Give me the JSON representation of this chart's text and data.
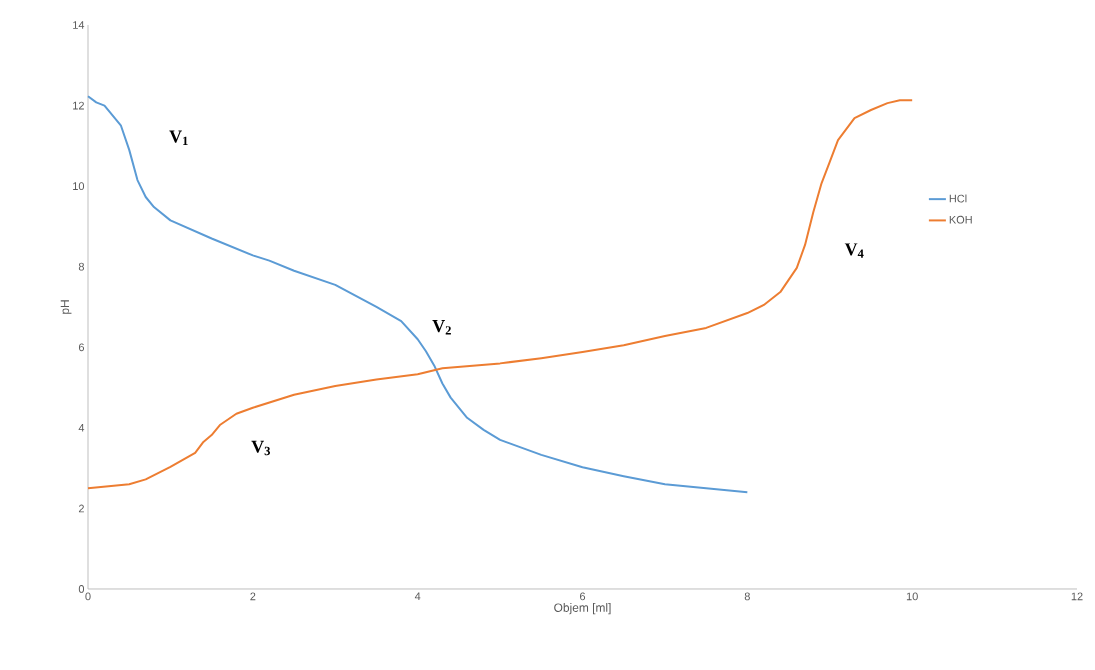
{
  "chart_data": {
    "type": "line",
    "xlabel": "Objem [ml]",
    "ylabel": "pH",
    "xlim": [
      0,
      12
    ],
    "ylim": [
      0,
      14
    ],
    "xticks": [
      0,
      2,
      4,
      6,
      8,
      10,
      12
    ],
    "yticks": [
      0,
      2,
      4,
      6,
      8,
      10,
      12,
      14
    ],
    "grid": false,
    "legend": "right",
    "series": [
      {
        "name": "HCl",
        "color": "#5b9bd5",
        "x": [
          0,
          0.1,
          0.2,
          0.4,
          0.5,
          0.6,
          0.7,
          0.8,
          1.0,
          1.5,
          2.0,
          2.2,
          2.5,
          3.0,
          3.5,
          3.8,
          4.0,
          4.1,
          4.2,
          4.3,
          4.4,
          4.6,
          4.8,
          5.0,
          5.5,
          6.0,
          6.5,
          7.0,
          7.5,
          8.0
        ],
        "values": [
          12.23,
          12.08,
          12.0,
          11.5,
          10.9,
          10.15,
          9.73,
          9.48,
          9.15,
          8.7,
          8.28,
          8.15,
          7.9,
          7.55,
          7.0,
          6.65,
          6.2,
          5.9,
          5.55,
          5.1,
          4.75,
          4.25,
          3.95,
          3.7,
          3.33,
          3.02,
          2.8,
          2.6,
          2.5,
          2.4
        ]
      },
      {
        "name": "KOH",
        "color": "#ed7d31",
        "x": [
          0,
          0.5,
          0.7,
          1.0,
          1.3,
          1.4,
          1.5,
          1.6,
          1.8,
          2.0,
          2.5,
          3.0,
          3.5,
          4.0,
          4.3,
          5.0,
          5.5,
          6.0,
          6.5,
          7.0,
          7.5,
          8.0,
          8.2,
          8.4,
          8.6,
          8.7,
          8.8,
          8.9,
          9.0,
          9.1,
          9.3,
          9.5,
          9.7,
          9.85,
          10.0
        ],
        "values": [
          2.5,
          2.6,
          2.72,
          3.03,
          3.38,
          3.65,
          3.82,
          4.07,
          4.35,
          4.5,
          4.82,
          5.04,
          5.2,
          5.33,
          5.48,
          5.6,
          5.73,
          5.88,
          6.05,
          6.28,
          6.48,
          6.85,
          7.05,
          7.37,
          7.97,
          8.54,
          9.35,
          10.07,
          10.6,
          11.14,
          11.69,
          11.89,
          12.06,
          12.13,
          12.13
        ]
      }
    ],
    "annotations": [
      "V$_{1}$",
      "V$_{2}$",
      "V$_{3}$",
      "V$_{4}$"
    ]
  }
}
